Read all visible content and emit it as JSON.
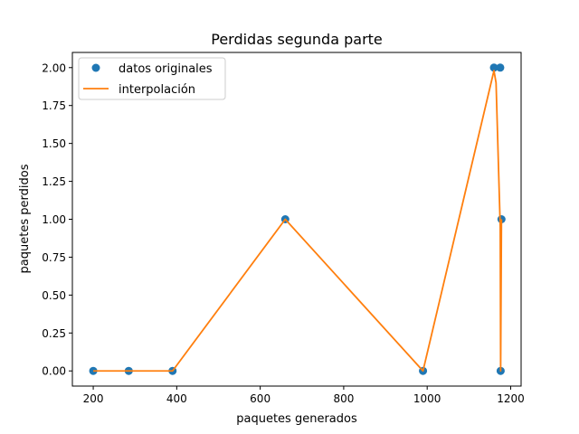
{
  "chart_data": {
    "type": "line",
    "title": "Perdidas segunda parte",
    "xlabel": "paquetes generados",
    "ylabel": "paquetes perdidos",
    "xlim": [
      150,
      1225
    ],
    "ylim": [
      -0.1,
      2.1
    ],
    "xticks": [
      200,
      400,
      600,
      800,
      1000,
      1200
    ],
    "yticks": [
      0.0,
      0.25,
      0.5,
      0.75,
      1.0,
      1.25,
      1.5,
      1.75,
      2.0
    ],
    "xtick_labels": [
      "200",
      "400",
      "600",
      "800",
      "1000",
      "1200"
    ],
    "ytick_labels": [
      "0.00",
      "0.25",
      "0.50",
      "0.75",
      "1.00",
      "1.25",
      "1.50",
      "1.75",
      "2.00"
    ],
    "grid": false,
    "legend_position": "top-left",
    "series": [
      {
        "name": "datos originales",
        "kind": "scatter",
        "color": "#1f77b4",
        "x": [
          200,
          285,
          390,
          660,
          990,
          1160,
          1175,
          1176,
          1178
        ],
        "y": [
          0,
          0,
          0,
          1,
          0,
          2,
          2,
          0,
          1
        ]
      },
      {
        "name": "interpolación",
        "kind": "line",
        "color": "#ff7f0e",
        "x": [
          200,
          285,
          390,
          660,
          990,
          1160,
          1165,
          1175,
          1176,
          1178
        ],
        "y": [
          0,
          0,
          0,
          1,
          0,
          1.98,
          1.9,
          0.95,
          0,
          1
        ]
      }
    ]
  }
}
